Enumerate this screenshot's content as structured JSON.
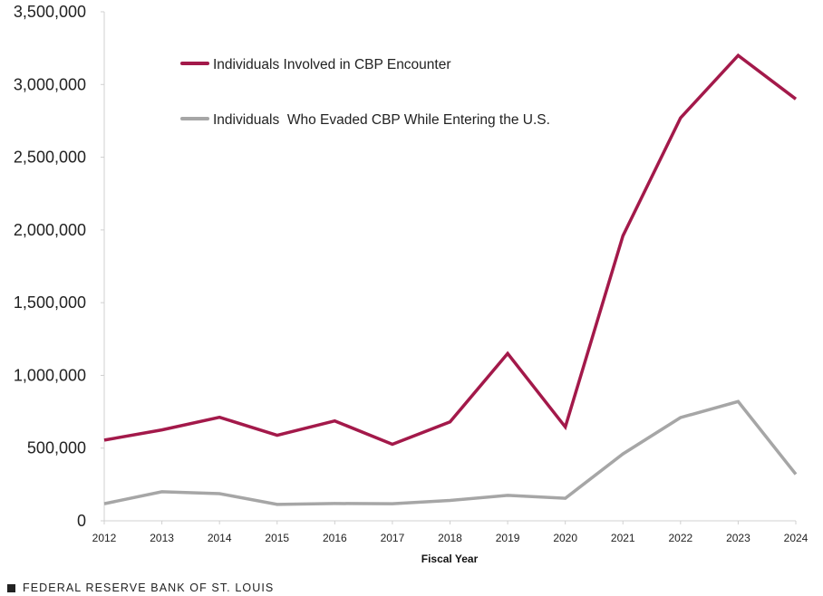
{
  "chart_data": {
    "type": "line",
    "categories": [
      "2012",
      "2013",
      "2014",
      "2015",
      "2016",
      "2017",
      "2018",
      "2019",
      "2020",
      "2021",
      "2022",
      "2023",
      "2024"
    ],
    "series": [
      {
        "name": "Individuals Involved in CBP Encounter",
        "color": "#a3194a",
        "values": [
          555000,
          625000,
          712000,
          588000,
          687000,
          526000,
          680000,
          1150000,
          645000,
          1960000,
          2770000,
          3200000,
          2900000
        ]
      },
      {
        "name": "Individuals  Who Evaded CBP While Entering the U.S.",
        "color": "#a6a6a6",
        "values": [
          118000,
          200000,
          187000,
          113000,
          119000,
          118000,
          140000,
          175000,
          155000,
          460000,
          710000,
          820000,
          320000
        ]
      }
    ],
    "ylim": [
      0,
      3500000
    ],
    "yticks": [
      "0",
      "500,000",
      "1,000,000",
      "1,500,000",
      "2,000,000",
      "2,500,000",
      "3,000,000",
      "3,500,000"
    ],
    "xlabel": "Fiscal Year",
    "ylabel": "",
    "grid": false,
    "legend_position": "top-left"
  },
  "footer": {
    "source": "FEDERAL RESERVE BANK OF ST. LOUIS"
  }
}
